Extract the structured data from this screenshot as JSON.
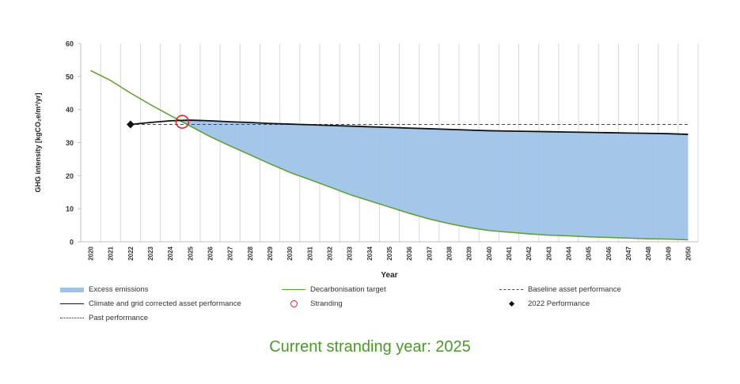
{
  "chart_data": {
    "type": "area",
    "xlabel": "Year",
    "ylabel": "GHG intensity [kgCO₂e/m²/yr]",
    "ylim": [
      0,
      60
    ],
    "yticks": [
      0,
      10,
      20,
      30,
      40,
      50,
      60
    ],
    "x": [
      2020,
      2021,
      2022,
      2023,
      2024,
      2025,
      2026,
      2027,
      2028,
      2029,
      2030,
      2031,
      2032,
      2033,
      2034,
      2035,
      2036,
      2037,
      2038,
      2039,
      2040,
      2041,
      2042,
      2043,
      2044,
      2045,
      2046,
      2047,
      2048,
      2049,
      2050
    ],
    "grid": "vertical",
    "series": [
      {
        "name": "Decarbonisation target",
        "color": "#5aa02c",
        "style": "solid",
        "x": [
          2020,
          2021,
          2022,
          2023,
          2024,
          2025,
          2026,
          2027,
          2028,
          2029,
          2030,
          2031,
          2032,
          2033,
          2034,
          2035,
          2036,
          2037,
          2038,
          2039,
          2040,
          2041,
          2042,
          2043,
          2044,
          2045,
          2046,
          2047,
          2048,
          2049,
          2050
        ],
        "values": [
          51.8,
          48.8,
          45.0,
          41.5,
          38.2,
          35.0,
          31.8,
          29.0,
          26.3,
          23.6,
          21.0,
          18.8,
          16.6,
          14.3,
          12.4,
          10.5,
          8.6,
          6.9,
          5.5,
          4.3,
          3.4,
          2.9,
          2.4,
          2.0,
          1.8,
          1.5,
          1.3,
          1.1,
          0.9,
          0.8,
          0.6
        ]
      },
      {
        "name": "Climate and grid corrected asset performance",
        "color": "#111111",
        "style": "solid",
        "x": [
          2022,
          2023,
          2024,
          2025,
          2026,
          2027,
          2028,
          2029,
          2030,
          2031,
          2032,
          2033,
          2034,
          2035,
          2036,
          2037,
          2038,
          2039,
          2040,
          2041,
          2042,
          2043,
          2044,
          2045,
          2046,
          2047,
          2048,
          2049,
          2050
        ],
        "values": [
          35.5,
          36.1,
          36.6,
          36.8,
          36.6,
          36.3,
          36.1,
          35.8,
          35.6,
          35.4,
          35.2,
          35.0,
          34.8,
          34.6,
          34.4,
          34.2,
          34.0,
          33.8,
          33.6,
          33.5,
          33.4,
          33.3,
          33.2,
          33.1,
          33.0,
          32.9,
          32.8,
          32.7,
          32.5
        ]
      },
      {
        "name": "Baseline asset performance",
        "color": "#444444",
        "style": "dashed",
        "x": [
          2022,
          2050
        ],
        "values": [
          35.5,
          35.5
        ]
      },
      {
        "name": "Past performance",
        "color": "#222222",
        "style": "dotted",
        "x": [],
        "values": []
      },
      {
        "name": "Excess emissions",
        "color": "#9fc3e8",
        "style": "fill"
      }
    ],
    "markers": [
      {
        "name": "Stranding",
        "x": 2024.6,
        "y": 36.3,
        "shape": "circle",
        "color": "#e02020"
      },
      {
        "name": "2022 Performance",
        "x": 2022,
        "y": 35.5,
        "shape": "diamond",
        "color": "#111111"
      }
    ],
    "legend": [
      "Excess emissions",
      "Decarbonisation target",
      "Baseline asset performance",
      "Climate and grid corrected asset performance",
      "Stranding",
      "2022 Performance",
      "Past performance"
    ]
  },
  "caption": "Current stranding year: 2025"
}
